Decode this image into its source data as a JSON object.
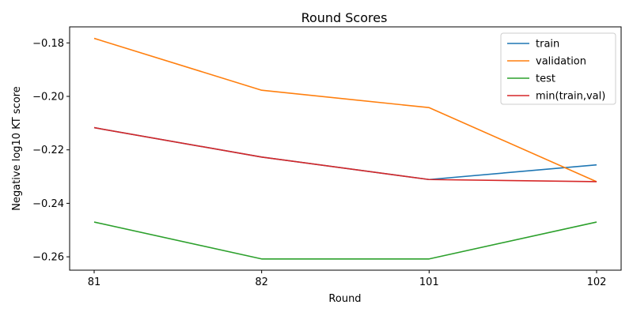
{
  "chart_data": {
    "type": "line",
    "title": "Round Scores",
    "xlabel": "Round",
    "ylabel": "Negative log10 KT score",
    "categories": [
      "81",
      "82",
      "101",
      "102"
    ],
    "ylim": [
      -0.265,
      -0.174
    ],
    "yticks": [
      -0.18,
      -0.2,
      -0.22,
      -0.24,
      -0.26
    ],
    "ytick_labels": [
      "−0.18",
      "−0.20",
      "−0.22",
      "−0.24",
      "−0.26"
    ],
    "grid": false,
    "legend_position": "top-right",
    "series": [
      {
        "name": "train",
        "color": "#1f77b4",
        "values": [
          -0.2117,
          -0.2227,
          -0.2311,
          -0.2256
        ]
      },
      {
        "name": "validation",
        "color": "#ff7f0e",
        "values": [
          -0.1783,
          -0.1977,
          -0.2042,
          -0.2319
        ]
      },
      {
        "name": "test",
        "color": "#2ca02c",
        "values": [
          -0.247,
          -0.2608,
          -0.2608,
          -0.247
        ]
      },
      {
        "name": "min(train,val)",
        "color": "#d62728",
        "values": [
          -0.2117,
          -0.2227,
          -0.2311,
          -0.2319
        ]
      }
    ]
  }
}
